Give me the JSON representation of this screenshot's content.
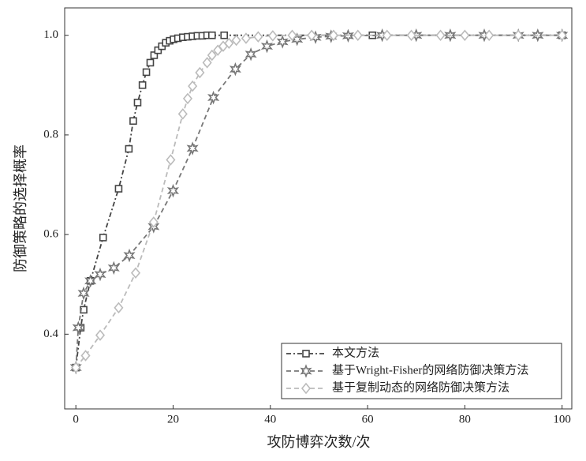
{
  "chart_data": {
    "type": "line",
    "xlabel": "攻防博弈次数/次",
    "ylabel": "防御策略的选择概率",
    "xlim": [
      -2.3,
      102
    ],
    "ylim": [
      0.25,
      1.055
    ],
    "xticks": [
      0,
      20,
      40,
      60,
      80,
      100
    ],
    "yticks": [
      0.4,
      0.6,
      0.8,
      {
        "value": 1,
        "label": "1.0"
      }
    ],
    "legend": "lower right",
    "series": [
      {
        "name": "本文方法",
        "color": "#444444",
        "marker": "square",
        "dash": "6,3,2,3",
        "x": [
          0,
          1,
          1.6,
          3,
          5.6,
          8.8,
          10.9,
          11.8,
          12.7,
          13.7,
          14.5,
          15.3,
          16.1,
          16.9,
          17.7,
          18.5,
          19.3,
          20.1,
          21,
          22,
          23,
          24,
          25,
          26,
          27,
          28,
          30.5,
          61,
          100
        ],
        "values": [
          0.333,
          0.413,
          0.449,
          0.507,
          0.594,
          0.692,
          0.772,
          0.828,
          0.865,
          0.9,
          0.926,
          0.945,
          0.96,
          0.97,
          0.978,
          0.985,
          0.989,
          0.992,
          0.994,
          0.996,
          0.997,
          0.998,
          0.999,
          0.999,
          1.0,
          1.0,
          1.0,
          1.0,
          1.0
        ]
      },
      {
        "name": "基于Wright-Fisher的网络防御决策方法",
        "color": "#777777",
        "marker": "star",
        "dash": "6,4",
        "x": [
          0,
          0.5,
          1.6,
          3,
          5,
          7.8,
          11,
          16,
          20,
          24,
          28.3,
          32.8,
          36,
          39.3,
          42.5,
          45.5,
          49.3,
          52.5,
          56,
          63,
          70,
          77,
          84,
          91,
          95,
          100
        ],
        "values": [
          0.333,
          0.413,
          0.482,
          0.507,
          0.52,
          0.533,
          0.558,
          0.616,
          0.688,
          0.773,
          0.875,
          0.932,
          0.962,
          0.978,
          0.987,
          0.992,
          0.996,
          0.998,
          0.999,
          1.0,
          1.0,
          1.0,
          1.0,
          1.0,
          1.0,
          1.0
        ]
      },
      {
        "name": "基于复制动态的网络防御决策方法",
        "color": "#bbbbbb",
        "marker": "diamond",
        "dash": "6,4",
        "x": [
          0,
          2,
          5,
          8.8,
          12.3,
          16,
          19.5,
          22,
          23,
          24,
          25.5,
          27,
          28,
          29.2,
          30.3,
          31.5,
          33,
          35,
          37.5,
          40.5,
          44.5,
          48.5,
          53,
          58,
          64,
          69,
          75,
          80,
          85,
          91,
          100
        ],
        "values": [
          0.333,
          0.357,
          0.398,
          0.453,
          0.523,
          0.625,
          0.75,
          0.842,
          0.873,
          0.898,
          0.925,
          0.945,
          0.96,
          0.97,
          0.978,
          0.984,
          0.99,
          0.994,
          0.997,
          0.999,
          1.0,
          1.0,
          1.0,
          1.0,
          1.0,
          1.0,
          1.0,
          1.0,
          1.0,
          1.0,
          1.0
        ]
      }
    ]
  }
}
